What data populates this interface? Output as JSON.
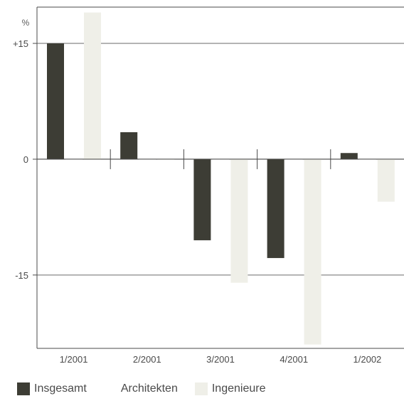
{
  "chart_data": {
    "type": "bar",
    "unit_label": "%",
    "categories": [
      "1/2001",
      "2/2001",
      "3/2001",
      "4/2001",
      "1/2002"
    ],
    "series": [
      {
        "name": "Insgesamt",
        "color": "#3d3d35",
        "values": [
          15,
          3.5,
          -10.5,
          -12.8,
          0.8
        ]
      },
      {
        "name": "Architekten",
        "color": "#ffffff",
        "values": [
          0,
          0,
          0,
          0,
          0
        ]
      },
      {
        "name": "Ingenieure",
        "color": "#efefe8",
        "values": [
          19,
          0,
          -16,
          -24,
          -5.5
        ]
      }
    ],
    "yticks": [
      {
        "value": 15,
        "label": "+15"
      },
      {
        "value": 0,
        "label": "0"
      },
      {
        "value": -15,
        "label": "-15"
      }
    ],
    "ylim": [
      -24.5,
      19.7
    ],
    "grid": true,
    "legend_position": "bottom-left"
  }
}
